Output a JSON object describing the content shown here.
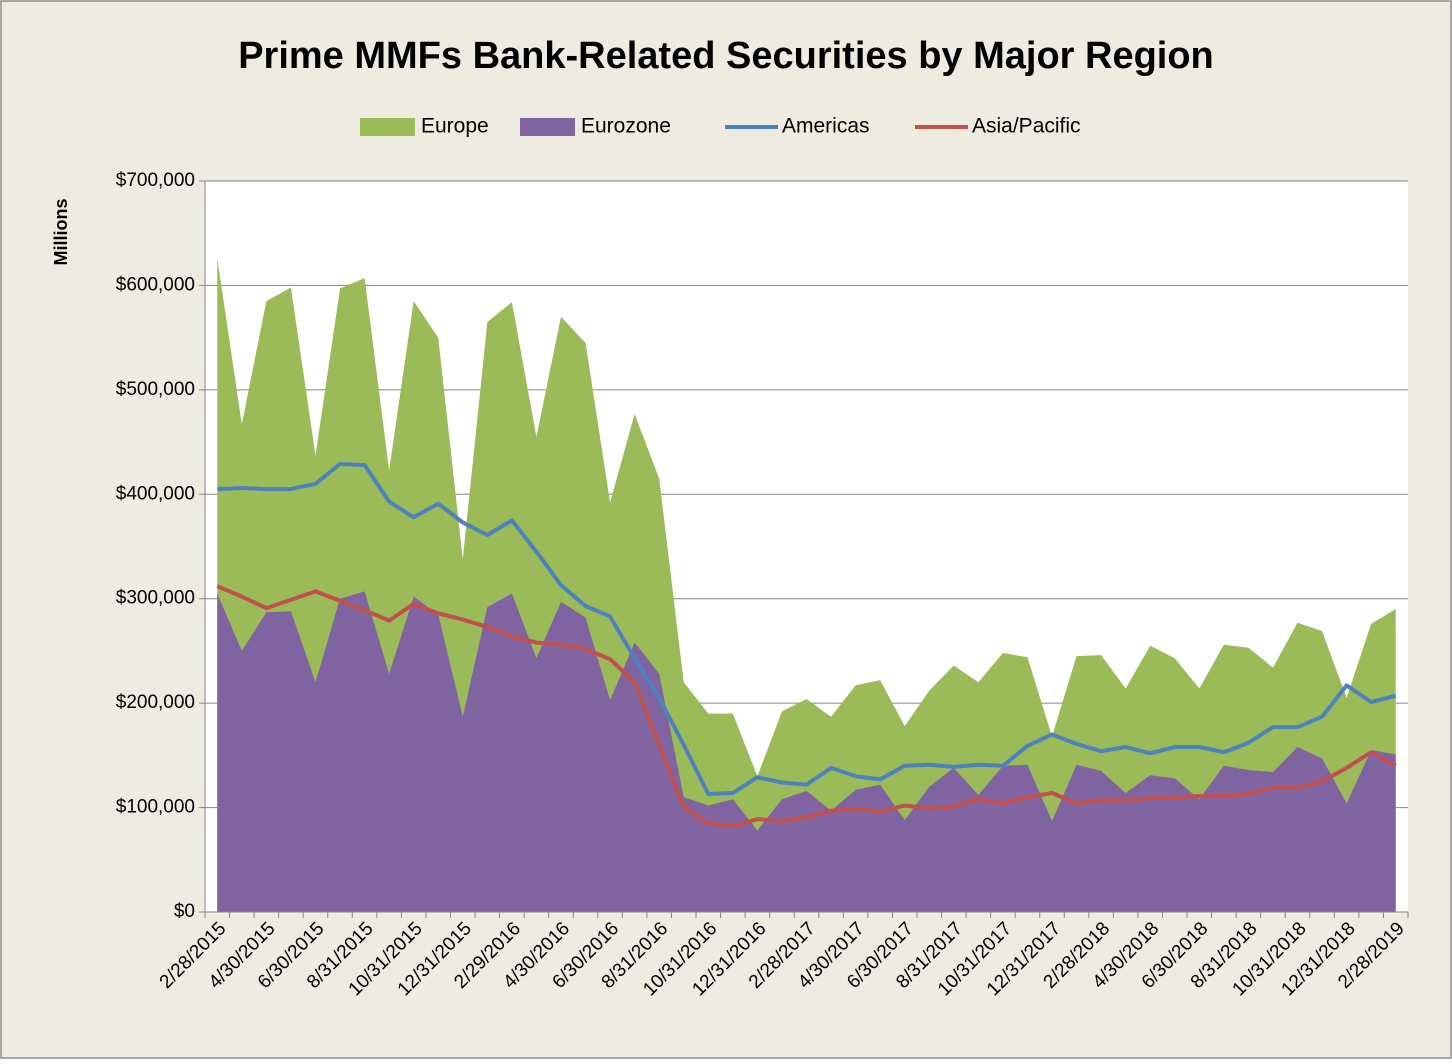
{
  "chart_data": {
    "type": "area_line",
    "title": "Prime MMFs Bank-Related Securities by Major Region",
    "y_label": "Millions",
    "categories": [
      "2/28/2015",
      null,
      "4/30/2015",
      null,
      "6/30/2015",
      null,
      "8/31/2015",
      null,
      "10/31/2015",
      null,
      "12/31/2015",
      null,
      "2/29/2016",
      null,
      "4/30/2016",
      null,
      "6/30/2016",
      null,
      "8/31/2016",
      null,
      "10/31/2016",
      null,
      "12/31/2016",
      null,
      "2/28/2017",
      null,
      "4/30/2017",
      null,
      "6/30/2017",
      null,
      "8/31/2017",
      null,
      "10/31/2017",
      null,
      "12/31/2017",
      null,
      "2/28/2018",
      null,
      "4/30/2018",
      null,
      "6/30/2018",
      null,
      "8/31/2018",
      null,
      "10/31/2018",
      null,
      "12/31/2018",
      null,
      "2/28/2019"
    ],
    "series": [
      {
        "name": "Europe",
        "kind": "area",
        "color": "#9bbb59",
        "values": [
          626000,
          467000,
          585000,
          598000,
          437000,
          597000,
          607000,
          423000,
          585000,
          550000,
          338000,
          565000,
          584000,
          455000,
          570000,
          545000,
          392000,
          477000,
          415000,
          220000,
          190000,
          190000,
          130000,
          192000,
          204000,
          187000,
          217000,
          222000,
          178000,
          212000,
          236000,
          220000,
          248000,
          244000,
          168000,
          245000,
          246000,
          214000,
          255000,
          243000,
          214000,
          256000,
          253000,
          234000,
          277000,
          269000,
          205000,
          276000,
          290000
        ]
      },
      {
        "name": "Eurozone",
        "kind": "area",
        "color": "#8064a2",
        "values": [
          305000,
          250000,
          287000,
          288000,
          220000,
          300000,
          307000,
          228000,
          302000,
          285000,
          187000,
          292000,
          305000,
          243000,
          297000,
          282000,
          203000,
          258000,
          228000,
          110000,
          102000,
          108000,
          78000,
          108000,
          116000,
          97000,
          117000,
          122000,
          88000,
          120000,
          138000,
          112000,
          140000,
          141000,
          87000,
          141000,
          135000,
          114000,
          131000,
          128000,
          108000,
          140000,
          136000,
          134000,
          158000,
          147000,
          104000,
          155000,
          151000
        ]
      },
      {
        "name": "Americas",
        "kind": "line",
        "color": "#4f81bd",
        "values": [
          405000,
          406000,
          405000,
          405000,
          410000,
          429000,
          428000,
          393000,
          378000,
          391000,
          373000,
          361000,
          375000,
          345000,
          313000,
          293000,
          283000,
          243000,
          205000,
          160000,
          113000,
          114000,
          129000,
          124000,
          122000,
          138000,
          130000,
          127000,
          140000,
          141000,
          139000,
          141000,
          140000,
          159000,
          170000,
          161000,
          154000,
          158000,
          152000,
          158000,
          158000,
          153000,
          162000,
          177000,
          177000,
          187000,
          217000,
          201000,
          207000
        ]
      },
      {
        "name": "Asia/Pacific",
        "kind": "line",
        "color": "#c0504d",
        "values": [
          312000,
          302000,
          291000,
          299000,
          307000,
          298000,
          289000,
          279000,
          295000,
          286000,
          280000,
          273000,
          264000,
          258000,
          256000,
          252000,
          242000,
          220000,
          160000,
          100000,
          85000,
          82000,
          89000,
          87000,
          91000,
          97000,
          99000,
          96000,
          102000,
          99000,
          101000,
          108000,
          104000,
          110000,
          114000,
          104000,
          107000,
          107000,
          109000,
          110000,
          111000,
          111000,
          113000,
          119000,
          119000,
          125000,
          138000,
          153000,
          140000
        ]
      }
    ],
    "ylim": [
      0,
      700000
    ],
    "yticks": [
      {
        "value": 0,
        "label": "$0"
      },
      {
        "value": 100000,
        "label": "$100,000"
      },
      {
        "value": 200000,
        "label": "$200,000"
      },
      {
        "value": 300000,
        "label": "$300,000"
      },
      {
        "value": 400000,
        "label": "$400,000"
      },
      {
        "value": 500000,
        "label": "$500,000"
      },
      {
        "value": 600000,
        "label": "$600,000"
      },
      {
        "value": 700000,
        "label": "$700,000"
      }
    ],
    "grid": true,
    "legend": "top"
  }
}
